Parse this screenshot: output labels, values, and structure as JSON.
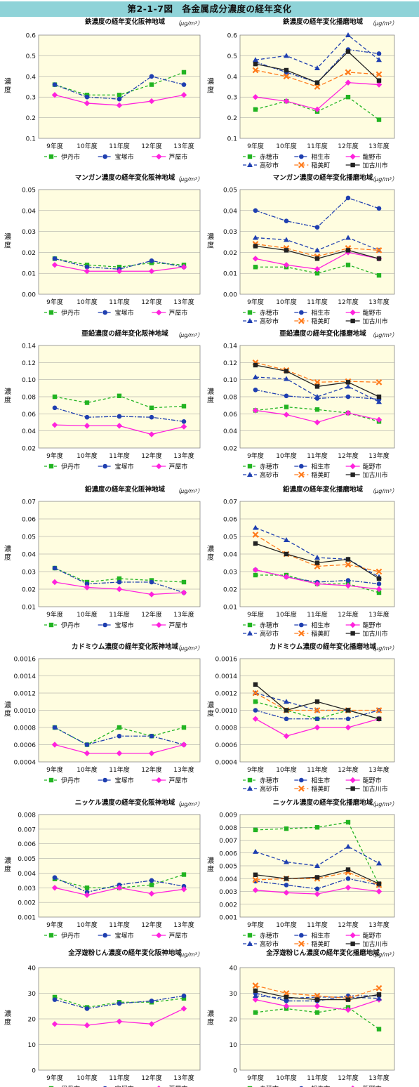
{
  "header": {
    "title": "第2-1-7図　各金属成分濃度の経年変化"
  },
  "common": {
    "categories": [
      "9年度",
      "10年度",
      "11年度",
      "12年度",
      "13年度"
    ],
    "ylabel": "濃度",
    "unit": "（μg/m³）"
  },
  "styles": {
    "伊丹市": {
      "color": "#22b422",
      "marker": "square",
      "dash": "4,3"
    },
    "宝塚市": {
      "color": "#1f3fb0",
      "marker": "circle",
      "dash": "6,2,2,2"
    },
    "芦屋市": {
      "color": "#ff22dd",
      "marker": "diamond",
      "dash": ""
    },
    "赤穂市": {
      "color": "#22b422",
      "marker": "square",
      "dash": "4,3"
    },
    "相生市": {
      "color": "#1f3fb0",
      "marker": "circle",
      "dash": "6,2,2,2"
    },
    "龍野市": {
      "color": "#ff22dd",
      "marker": "diamond",
      "dash": ""
    },
    "高砂市": {
      "color": "#1f3fb0",
      "marker": "triangle",
      "dash": "5,3"
    },
    "稲美町": {
      "color": "#ff7a1a",
      "marker": "x",
      "dash": "6,3"
    },
    "加古川市": {
      "color": "#222222",
      "marker": "square",
      "dash": ""
    }
  },
  "chart_data": [
    {
      "id": "fe-h",
      "title": "鉄濃度の経年変化阪神地域",
      "type": "line",
      "ylim": [
        0.1,
        0.6
      ],
      "step": 0.1,
      "decimals": 1,
      "series": [
        {
          "name": "伊丹市",
          "values": [
            0.36,
            0.31,
            0.31,
            0.36,
            0.42
          ]
        },
        {
          "name": "宝塚市",
          "values": [
            0.36,
            0.3,
            0.29,
            0.4,
            0.36
          ]
        },
        {
          "name": "芦屋市",
          "values": [
            0.31,
            0.27,
            0.26,
            0.28,
            0.31
          ]
        }
      ]
    },
    {
      "id": "fe-b",
      "title": "鉄濃度の経年変化播磨地域",
      "type": "line",
      "ylim": [
        0.1,
        0.6
      ],
      "step": 0.1,
      "decimals": 1,
      "series": [
        {
          "name": "赤穂市",
          "values": [
            0.24,
            0.28,
            0.23,
            0.3,
            0.19
          ]
        },
        {
          "name": "相生市",
          "values": [
            0.47,
            0.42,
            0.37,
            0.53,
            0.51
          ]
        },
        {
          "name": "龍野市",
          "values": [
            0.3,
            0.28,
            0.24,
            0.37,
            0.36
          ]
        },
        {
          "name": "高砂市",
          "values": [
            0.48,
            0.5,
            0.44,
            0.6,
            0.48
          ]
        },
        {
          "name": "稲美町",
          "values": [
            0.43,
            0.4,
            0.35,
            0.42,
            0.41
          ]
        },
        {
          "name": "加古川市",
          "values": [
            0.46,
            0.43,
            0.37,
            0.52,
            0.38
          ]
        }
      ]
    },
    {
      "id": "mn-h",
      "title": "マンガン濃度の経年変化阪神地域",
      "type": "line",
      "ylim": [
        0,
        0.05
      ],
      "step": 0.01,
      "decimals": 2,
      "series": [
        {
          "name": "伊丹市",
          "values": [
            0.017,
            0.014,
            0.013,
            0.015,
            0.014
          ]
        },
        {
          "name": "宝塚市",
          "values": [
            0.017,
            0.013,
            0.012,
            0.016,
            0.013
          ]
        },
        {
          "name": "芦屋市",
          "values": [
            0.014,
            0.011,
            0.011,
            0.011,
            0.013
          ]
        }
      ]
    },
    {
      "id": "mn-b",
      "title": "マンガン濃度の経年変化播磨地域",
      "type": "line",
      "ylim": [
        0,
        0.05
      ],
      "step": 0.01,
      "decimals": 2,
      "series": [
        {
          "name": "赤穂市",
          "values": [
            0.013,
            0.013,
            0.01,
            0.014,
            0.009
          ]
        },
        {
          "name": "相生市",
          "values": [
            0.04,
            0.035,
            0.032,
            0.046,
            0.041
          ]
        },
        {
          "name": "龍野市",
          "values": [
            0.017,
            0.014,
            0.012,
            0.02,
            0.017
          ]
        },
        {
          "name": "高砂市",
          "values": [
            0.027,
            0.026,
            0.021,
            0.027,
            0.021
          ]
        },
        {
          "name": "稲美町",
          "values": [
            0.024,
            0.022,
            0.018,
            0.022,
            0.021
          ]
        },
        {
          "name": "加古川市",
          "values": [
            0.023,
            0.021,
            0.017,
            0.021,
            0.017
          ]
        }
      ]
    },
    {
      "id": "zn-h",
      "title": "亜鉛濃度の経年変化阪神地域",
      "type": "line",
      "ylim": [
        0.02,
        0.14
      ],
      "step": 0.02,
      "decimals": 2,
      "series": [
        {
          "name": "伊丹市",
          "values": [
            0.08,
            0.073,
            0.081,
            0.067,
            0.069
          ]
        },
        {
          "name": "宝塚市",
          "values": [
            0.067,
            0.056,
            0.057,
            0.056,
            0.051
          ]
        },
        {
          "name": "芦屋市",
          "values": [
            0.047,
            0.046,
            0.046,
            0.036,
            0.045
          ]
        }
      ]
    },
    {
      "id": "zn-b",
      "title": "亜鉛濃度の経年変化播磨地域",
      "type": "line",
      "ylim": [
        0.02,
        0.14
      ],
      "step": 0.02,
      "decimals": 2,
      "series": [
        {
          "name": "赤穂市",
          "values": [
            0.064,
            0.068,
            0.065,
            0.061,
            0.051
          ]
        },
        {
          "name": "相生市",
          "values": [
            0.088,
            0.081,
            0.078,
            0.08,
            0.077
          ]
        },
        {
          "name": "龍野市",
          "values": [
            0.064,
            0.059,
            0.05,
            0.061,
            0.053
          ]
        },
        {
          "name": "高砂市",
          "values": [
            0.103,
            0.101,
            0.08,
            0.092,
            0.074
          ]
        },
        {
          "name": "稲美町",
          "values": [
            0.12,
            0.111,
            0.097,
            0.098,
            0.097
          ]
        },
        {
          "name": "加古川市",
          "values": [
            0.117,
            0.11,
            0.092,
            0.097,
            0.08
          ]
        }
      ]
    },
    {
      "id": "pb-h",
      "title": "鉛濃度の経年変化阪神地域",
      "type": "line",
      "ylim": [
        0.01,
        0.07
      ],
      "step": 0.01,
      "decimals": 2,
      "series": [
        {
          "name": "伊丹市",
          "values": [
            0.032,
            0.024,
            0.026,
            0.025,
            0.024
          ]
        },
        {
          "name": "宝塚市",
          "values": [
            0.032,
            0.023,
            0.024,
            0.024,
            0.018
          ]
        },
        {
          "name": "芦屋市",
          "values": [
            0.024,
            0.021,
            0.02,
            0.017,
            0.018
          ]
        }
      ]
    },
    {
      "id": "pb-b",
      "title": "鉛濃度の経年変化播磨地域",
      "type": "line",
      "ylim": [
        0.01,
        0.07
      ],
      "step": 0.01,
      "decimals": 2,
      "series": [
        {
          "name": "赤穂市",
          "values": [
            0.028,
            0.028,
            0.023,
            0.023,
            0.018
          ]
        },
        {
          "name": "相生市",
          "values": [
            0.031,
            0.027,
            0.024,
            0.025,
            0.023
          ]
        },
        {
          "name": "龍野市",
          "values": [
            0.031,
            0.027,
            0.023,
            0.022,
            0.02
          ]
        },
        {
          "name": "高砂市",
          "values": [
            0.055,
            0.048,
            0.038,
            0.037,
            0.027
          ]
        },
        {
          "name": "稲美町",
          "values": [
            0.051,
            0.04,
            0.033,
            0.034,
            0.03
          ]
        },
        {
          "name": "加古川市",
          "values": [
            0.046,
            0.04,
            0.035,
            0.037,
            0.026
          ]
        }
      ]
    },
    {
      "id": "cd-h",
      "title": "カドミウム濃度の経年変化阪神地域",
      "type": "line",
      "ylim": [
        0.0004,
        0.0016
      ],
      "step": 0.0002,
      "decimals": 4,
      "series": [
        {
          "name": "伊丹市",
          "values": [
            0.0008,
            0.0006,
            0.0008,
            0.0007,
            0.0008
          ]
        },
        {
          "name": "宝塚市",
          "values": [
            0.0008,
            0.0006,
            0.0007,
            0.0007,
            0.0006
          ]
        },
        {
          "name": "芦屋市",
          "values": [
            0.0006,
            0.0005,
            0.0005,
            0.0005,
            0.0006
          ]
        }
      ]
    },
    {
      "id": "cd-b",
      "title": "カドミウム濃度の経年変化播磨地域",
      "type": "line",
      "ylim": [
        0.0004,
        0.0016
      ],
      "step": 0.0002,
      "decimals": 4,
      "series": [
        {
          "name": "赤穂市",
          "values": [
            0.0011,
            0.001,
            0.0009,
            0.001,
            0.0009
          ]
        },
        {
          "name": "相生市",
          "values": [
            0.001,
            0.0009,
            0.0009,
            0.0009,
            0.001
          ]
        },
        {
          "name": "龍野市",
          "values": [
            0.0009,
            0.0007,
            0.0008,
            0.0008,
            0.0009
          ]
        },
        {
          "name": "高砂市",
          "values": [
            0.0012,
            0.0011,
            0.001,
            0.001,
            0.0009
          ]
        },
        {
          "name": "稲美町",
          "values": [
            0.0012,
            0.001,
            0.001,
            0.001,
            0.001
          ]
        },
        {
          "name": "加古川市",
          "values": [
            0.0013,
            0.001,
            0.0011,
            0.001,
            0.0009
          ]
        }
      ]
    },
    {
      "id": "ni-h",
      "title": "ニッケル濃度の経年変化阪神地域",
      "type": "line",
      "ylim": [
        0.001,
        0.008
      ],
      "step": 0.001,
      "decimals": 3,
      "series": [
        {
          "name": "伊丹市",
          "values": [
            0.0036,
            0.003,
            0.003,
            0.0032,
            0.0039
          ]
        },
        {
          "name": "宝塚市",
          "values": [
            0.0037,
            0.0027,
            0.0032,
            0.0035,
            0.0031
          ]
        },
        {
          "name": "芦屋市",
          "values": [
            0.003,
            0.0025,
            0.003,
            0.0026,
            0.0029
          ]
        }
      ]
    },
    {
      "id": "ni-b",
      "title": "ニッケル濃度の経年変化播磨地域",
      "type": "line",
      "ylim": [
        0.001,
        0.009
      ],
      "step": 0.001,
      "decimals": 3,
      "series": [
        {
          "name": "赤穂市",
          "values": [
            0.0078,
            0.0079,
            0.008,
            0.0084,
            0.0035
          ]
        },
        {
          "name": "相生市",
          "values": [
            0.0038,
            0.0035,
            0.0032,
            0.004,
            0.0035
          ]
        },
        {
          "name": "龍野市",
          "values": [
            0.0031,
            0.0029,
            0.0028,
            0.0033,
            0.003
          ]
        },
        {
          "name": "高砂市",
          "values": [
            0.0061,
            0.0053,
            0.005,
            0.0065,
            0.0052
          ]
        },
        {
          "name": "稲美町",
          "values": [
            0.0039,
            0.004,
            0.004,
            0.0045,
            0.0035
          ]
        },
        {
          "name": "加古川市",
          "values": [
            0.0043,
            0.004,
            0.0041,
            0.0047,
            0.0036
          ]
        }
      ]
    },
    {
      "id": "dust-h",
      "title": "全浮遊粉じん濃度の経年変化阪神地域",
      "type": "line",
      "ylim": [
        0,
        40
      ],
      "step": 10,
      "decimals": 0,
      "series": [
        {
          "name": "伊丹市",
          "values": [
            28.5,
            24.5,
            26.5,
            26.5,
            28
          ]
        },
        {
          "name": "宝塚市",
          "values": [
            27.5,
            24,
            26,
            27,
            29
          ]
        },
        {
          "name": "芦屋市",
          "values": [
            18,
            17.5,
            19,
            18,
            24
          ]
        }
      ]
    },
    {
      "id": "dust-b",
      "title": "全浮遊粉じん濃度の経年変化播磨地域",
      "type": "line",
      "ylim": [
        0,
        40
      ],
      "step": 10,
      "decimals": 0,
      "series": [
        {
          "name": "赤穂市",
          "values": [
            22.5,
            24,
            22.5,
            24.5,
            16
          ]
        },
        {
          "name": "相生市",
          "values": [
            30,
            27,
            27,
            29,
            29
          ]
        },
        {
          "name": "龍野市",
          "values": [
            27.5,
            25,
            25,
            23.5,
            27.5
          ]
        },
        {
          "name": "高砂市",
          "values": [
            29,
            28,
            28.5,
            28.5,
            28
          ]
        },
        {
          "name": "稲美町",
          "values": [
            33,
            30,
            29,
            28,
            32
          ]
        },
        {
          "name": "加古川市",
          "values": [
            31,
            28.5,
            27.5,
            27.5,
            29.5
          ]
        }
      ]
    }
  ]
}
